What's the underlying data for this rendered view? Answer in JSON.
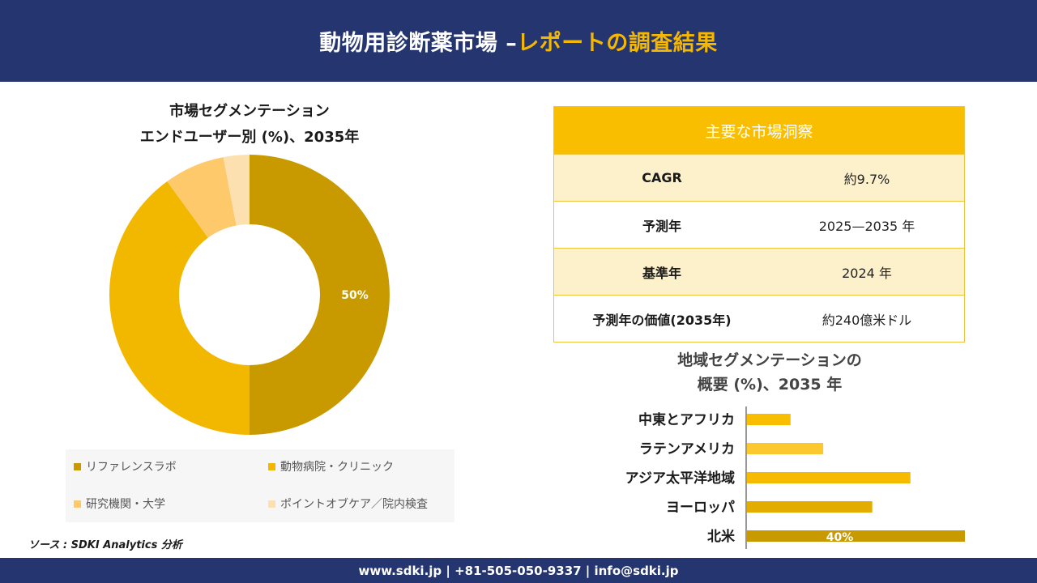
{
  "header": {
    "title_main": "動物用診断薬市場 –",
    "title_accent": "レポートの調査結果"
  },
  "colors": {
    "navy": "#253570",
    "gold": "#f9be00"
  },
  "chart_data": [
    {
      "type": "pie",
      "title_line1": "市場セグメンテーション",
      "title_line2": "エンドユーザー別 (%)、2035年",
      "donut": true,
      "legend_position": "bottom",
      "series": [
        {
          "name": "リファレンスラボ",
          "value": 50,
          "color": "#c89a00",
          "label": "50%"
        },
        {
          "name": "動物病院・クリニック",
          "value": 40,
          "color": "#f2b800",
          "label": ""
        },
        {
          "name": "研究機関・大学",
          "value": 7,
          "color": "#fdc96b",
          "label": ""
        },
        {
          "name": "ポイントオブケア／院内検査",
          "value": 3,
          "color": "#fde0b0",
          "label": ""
        }
      ]
    },
    {
      "type": "bar",
      "orientation": "horizontal",
      "title_line1": "地域セグメンテーションの",
      "title_line2": "概要 (%)、2035 年",
      "categories": [
        "中東とアフリカ",
        "ラテンアメリカ",
        "アジア太平洋地域",
        "ヨーロッパ",
        "北米"
      ],
      "values": [
        8,
        14,
        30,
        23,
        40
      ],
      "colors": [
        "#f9be00",
        "#fcc830",
        "#f6bb00",
        "#e3ac00",
        "#c89a00"
      ],
      "data_labels": [
        "",
        "",
        "",
        "",
        "40%"
      ],
      "xlim": [
        0,
        40
      ],
      "grid": false
    }
  ],
  "insights": {
    "heading": "主要な市場洞察",
    "rows": [
      {
        "key": "CAGR",
        "value": "約9.7%"
      },
      {
        "key": "予測年",
        "value": "2025—2035 年"
      },
      {
        "key": "基準年",
        "value": "2024 年"
      },
      {
        "key": "予測年の価値(2035年)",
        "value": "約240億米ドル"
      }
    ]
  },
  "source": "ソース : SDKI Analytics 分析",
  "footer": {
    "contact": "www.sdki.jp | +81-505-050-9337 | info@sdki.jp"
  }
}
